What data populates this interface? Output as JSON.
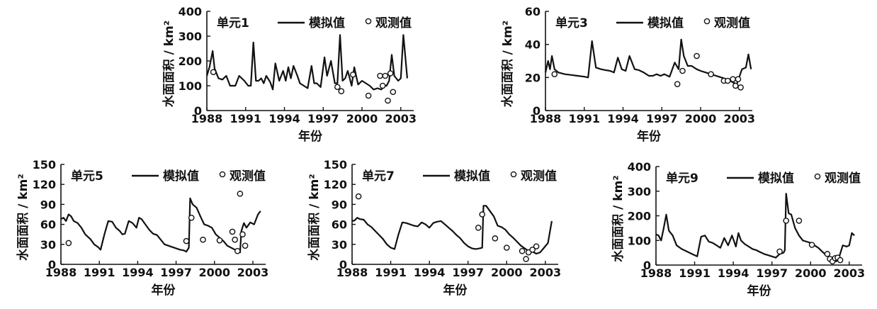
{
  "legend": {
    "sim_label": "模拟值",
    "obs_label": "观测值"
  },
  "chart_data": [
    {
      "type": "line",
      "title": "单元1",
      "xlabel": "年份",
      "ylabel": "水面面积 / km²",
      "xlim": [
        1988,
        2004
      ],
      "ylim": [
        0,
        400
      ],
      "xticks": [
        1988,
        1991,
        1994,
        1997,
        2000,
        2003
      ],
      "yticks": [
        0,
        100,
        200,
        300,
        400
      ],
      "series": [
        {
          "name": "模拟值",
          "kind": "line",
          "x": [
            1988.0,
            1988.2,
            1988.45,
            1988.6,
            1988.9,
            1989.2,
            1989.5,
            1989.8,
            1990.2,
            1990.5,
            1990.9,
            1991.2,
            1991.4,
            1991.6,
            1991.8,
            1992.0,
            1992.2,
            1992.4,
            1992.6,
            1992.9,
            1993.1,
            1993.3,
            1993.6,
            1993.9,
            1994.1,
            1994.3,
            1994.5,
            1994.7,
            1995.0,
            1995.2,
            1995.5,
            1995.8,
            1996.1,
            1996.3,
            1996.5,
            1996.8,
            1997.1,
            1997.3,
            1997.6,
            1997.9,
            1998.1,
            1998.3,
            1998.5,
            1998.7,
            1998.9,
            1999.2,
            1999.4,
            1999.7,
            2000.0,
            2000.3,
            2000.6,
            2000.9,
            2001.2,
            2001.5,
            2001.7,
            2001.9,
            2002.1,
            2002.3,
            2002.5,
            2002.8,
            2003.0,
            2003.2,
            2003.5
          ],
          "y": [
            140,
            175,
            240,
            170,
            130,
            125,
            140,
            100,
            100,
            140,
            120,
            100,
            100,
            275,
            120,
            120,
            130,
            110,
            140,
            115,
            85,
            190,
            120,
            160,
            120,
            175,
            130,
            180,
            140,
            110,
            100,
            90,
            180,
            110,
            110,
            95,
            215,
            140,
            200,
            110,
            110,
            305,
            120,
            130,
            160,
            100,
            175,
            105,
            120,
            110,
            100,
            85,
            90,
            85,
            100,
            100,
            120,
            225,
            140,
            120,
            130,
            305,
            130
          ]
        },
        {
          "name": "观测值",
          "kind": "scatter",
          "x": [
            1988.5,
            1998.1,
            1998.4,
            1999.3,
            2000.5,
            2001.4,
            2001.6,
            2001.8,
            2002.0,
            2002.2,
            2002.4
          ],
          "y": [
            155,
            95,
            78,
            145,
            60,
            140,
            100,
            140,
            40,
            150,
            75
          ]
        }
      ]
    },
    {
      "type": "line",
      "title": "单元3",
      "xlabel": "年份",
      "ylabel": "水面面积 / km²",
      "xlim": [
        1988,
        2004
      ],
      "ylim": [
        0,
        60
      ],
      "xticks": [
        1988,
        1991,
        1994,
        1997,
        2000,
        2003
      ],
      "yticks": [
        0,
        20,
        40,
        60
      ],
      "series": [
        {
          "name": "模拟值",
          "kind": "line",
          "x": [
            1988.0,
            1988.2,
            1988.35,
            1988.5,
            1988.7,
            1989.0,
            1989.5,
            1990.0,
            1990.5,
            1991.0,
            1991.3,
            1991.6,
            1991.9,
            1992.3,
            1992.6,
            1993.0,
            1993.3,
            1993.6,
            1993.9,
            1994.2,
            1994.5,
            1994.9,
            1995.2,
            1995.6,
            1996.0,
            1996.3,
            1996.6,
            1996.9,
            1997.2,
            1997.6,
            1998.0,
            1998.3,
            1998.5,
            1998.7,
            1999.0,
            1999.3,
            1999.7,
            2000.0,
            2000.4,
            2000.8,
            2001.2,
            2001.6,
            2002.0,
            2002.3,
            2002.5,
            2002.8,
            2003.2,
            2003.5,
            2003.7,
            2003.9
          ],
          "y": [
            23,
            30,
            25,
            33,
            25,
            23,
            22,
            21.5,
            21,
            20.5,
            20,
            42,
            26,
            25,
            24.5,
            24,
            23,
            32,
            25,
            24,
            33,
            25,
            24.5,
            23,
            21,
            21,
            22,
            21,
            22,
            20.5,
            29,
            25,
            43,
            33,
            27,
            27,
            25,
            24,
            23,
            22,
            21,
            20,
            19,
            18,
            17,
            16,
            25,
            26,
            34,
            25
          ]
        },
        {
          "name": "观测值",
          "kind": "scatter",
          "x": [
            1988.7,
            1998.2,
            1998.6,
            1999.7,
            2000.8,
            2001.8,
            2002.1,
            2002.5,
            2002.7,
            2002.9,
            2003.1
          ],
          "y": [
            22,
            16,
            24,
            33,
            22,
            18,
            18,
            19,
            15,
            19,
            14
          ]
        }
      ]
    },
    {
      "type": "line",
      "title": "单元5",
      "xlabel": "年份",
      "ylabel": "水面面积 / km²",
      "xlim": [
        1988,
        2004
      ],
      "ylim": [
        0,
        150
      ],
      "xticks": [
        1988,
        1991,
        1994,
        1997,
        2000,
        2003
      ],
      "yticks": [
        0,
        30,
        60,
        90,
        120,
        150
      ],
      "series": [
        {
          "name": "模拟值",
          "kind": "line",
          "x": [
            1988.0,
            1988.2,
            1988.4,
            1988.6,
            1988.8,
            1989.0,
            1989.3,
            1989.6,
            1989.9,
            1990.3,
            1990.6,
            1990.9,
            1991.1,
            1991.4,
            1991.7,
            1992.0,
            1992.3,
            1992.6,
            1992.8,
            1993.0,
            1993.3,
            1993.6,
            1993.9,
            1994.1,
            1994.3,
            1994.6,
            1994.9,
            1995.2,
            1995.5,
            1995.8,
            1996.1,
            1996.4,
            1996.7,
            1997.0,
            1997.3,
            1997.6,
            1997.8,
            1998.0,
            1998.1,
            1998.3,
            1998.6,
            1998.9,
            1999.2,
            1999.5,
            1999.8,
            2000.1,
            2000.4,
            2000.7,
            2001.0,
            2001.3,
            2001.6,
            2001.8,
            2002.0,
            2002.1,
            2002.3,
            2002.5,
            2002.8,
            2003.1,
            2003.4,
            2003.6
          ],
          "y": [
            68,
            70,
            65,
            75,
            72,
            65,
            62,
            55,
            45,
            38,
            30,
            26,
            22,
            45,
            65,
            64,
            55,
            50,
            45,
            46,
            65,
            62,
            55,
            70,
            68,
            60,
            52,
            46,
            44,
            37,
            30,
            28,
            26,
            24,
            22,
            21,
            19,
            25,
            99,
            90,
            85,
            72,
            60,
            58,
            55,
            45,
            40,
            35,
            28,
            25,
            22,
            20,
            18,
            50,
            62,
            55,
            63,
            60,
            75,
            80
          ]
        },
        {
          "name": "观测值",
          "kind": "scatter",
          "x": [
            1988.6,
            1997.8,
            1998.2,
            1999.1,
            2000.4,
            2001.4,
            2001.6,
            2001.8,
            2002.0,
            2002.2,
            2002.4
          ],
          "y": [
            32,
            35,
            70,
            37,
            36,
            49,
            37,
            20,
            106,
            45,
            28
          ]
        }
      ]
    },
    {
      "type": "line",
      "title": "单元7",
      "xlabel": "年份",
      "ylabel": "水面面积 / km²",
      "xlim": [
        1988,
        2004
      ],
      "ylim": [
        0,
        150
      ],
      "xticks": [
        1988,
        1991,
        1994,
        1997,
        2000,
        2003
      ],
      "yticks": [
        0,
        30,
        60,
        90,
        120,
        150
      ],
      "series": [
        {
          "name": "模拟值",
          "kind": "line",
          "x": [
            1988.0,
            1988.2,
            1988.4,
            1988.6,
            1988.9,
            1989.2,
            1989.5,
            1989.8,
            1990.1,
            1990.4,
            1990.7,
            1991.0,
            1991.3,
            1991.6,
            1991.9,
            1992.2,
            1992.5,
            1992.8,
            1993.1,
            1993.4,
            1993.7,
            1994.0,
            1994.3,
            1994.6,
            1994.9,
            1995.2,
            1995.5,
            1995.8,
            1996.1,
            1996.4,
            1996.7,
            1997.0,
            1997.3,
            1997.6,
            1997.9,
            1998.1,
            1998.2,
            1998.4,
            1998.7,
            1999.0,
            1999.3,
            1999.6,
            1999.9,
            2000.2,
            2000.5,
            2000.8,
            2001.1,
            2001.4,
            2001.7,
            2002.0,
            2002.3,
            2002.6,
            2002.9,
            2003.2,
            2003.5
          ],
          "y": [
            65,
            66,
            70,
            68,
            67,
            60,
            56,
            50,
            44,
            38,
            30,
            25,
            23,
            45,
            63,
            62,
            60,
            58,
            57,
            63,
            60,
            55,
            62,
            64,
            65,
            60,
            55,
            50,
            44,
            39,
            32,
            27,
            24,
            23,
            24,
            25,
            88,
            88,
            80,
            72,
            58,
            56,
            52,
            45,
            40,
            34,
            28,
            24,
            20,
            19,
            16,
            18,
            25,
            32,
            65
          ]
        },
        {
          "name": "观测值",
          "kind": "scatter",
          "x": [
            1988.5,
            1997.8,
            1998.1,
            1999.1,
            2000.0,
            2001.2,
            2001.5,
            2001.7,
            2002.0,
            2002.3
          ],
          "y": [
            102,
            55,
            75,
            39,
            25,
            20,
            8,
            18,
            22,
            27
          ]
        }
      ]
    },
    {
      "type": "line",
      "title": "单元9",
      "xlabel": "年份",
      "ylabel": "水面面积 / km²",
      "xlim": [
        1988,
        2004
      ],
      "ylim": [
        0,
        400
      ],
      "xticks": [
        1988,
        1991,
        1994,
        1997,
        2000,
        2003
      ],
      "yticks": [
        0,
        100,
        200,
        300,
        400
      ],
      "series": [
        {
          "name": "模拟值",
          "kind": "line",
          "x": [
            1988.0,
            1988.2,
            1988.4,
            1988.6,
            1988.8,
            1989.0,
            1989.3,
            1989.6,
            1990.0,
            1990.4,
            1990.8,
            1991.0,
            1991.2,
            1991.5,
            1991.8,
            1992.1,
            1992.4,
            1992.7,
            1993.0,
            1993.3,
            1993.6,
            1993.9,
            1994.2,
            1994.4,
            1994.6,
            1994.9,
            1995.2,
            1995.5,
            1995.8,
            1996.1,
            1996.4,
            1996.7,
            1997.0,
            1997.3,
            1997.6,
            1997.9,
            1998.0,
            1998.1,
            1998.3,
            1998.5,
            1998.8,
            1999.1,
            1999.4,
            1999.7,
            2000.0,
            2000.3,
            2000.6,
            2000.9,
            2001.2,
            2001.5,
            2001.8,
            2002.0,
            2002.2,
            2002.5,
            2002.8,
            2003.0,
            2003.2,
            2003.4
          ],
          "y": [
            125,
            120,
            100,
            150,
            205,
            140,
            120,
            80,
            65,
            55,
            45,
            40,
            35,
            115,
            120,
            95,
            90,
            80,
            70,
            110,
            80,
            120,
            75,
            130,
            100,
            85,
            75,
            65,
            60,
            52,
            45,
            40,
            35,
            30,
            45,
            50,
            60,
            290,
            210,
            205,
            150,
            120,
            100,
            95,
            90,
            80,
            70,
            55,
            40,
            30,
            20,
            15,
            30,
            80,
            75,
            80,
            130,
            120
          ]
        },
        {
          "name": "观测值",
          "kind": "scatter",
          "x": [
            1997.6,
            1998.1,
            1999.1,
            2000.1,
            2001.3,
            2001.5,
            2001.7,
            2001.9,
            2002.1,
            2002.3
          ],
          "y": [
            55,
            180,
            180,
            82,
            45,
            25,
            15,
            28,
            30,
            20
          ]
        }
      ]
    }
  ]
}
